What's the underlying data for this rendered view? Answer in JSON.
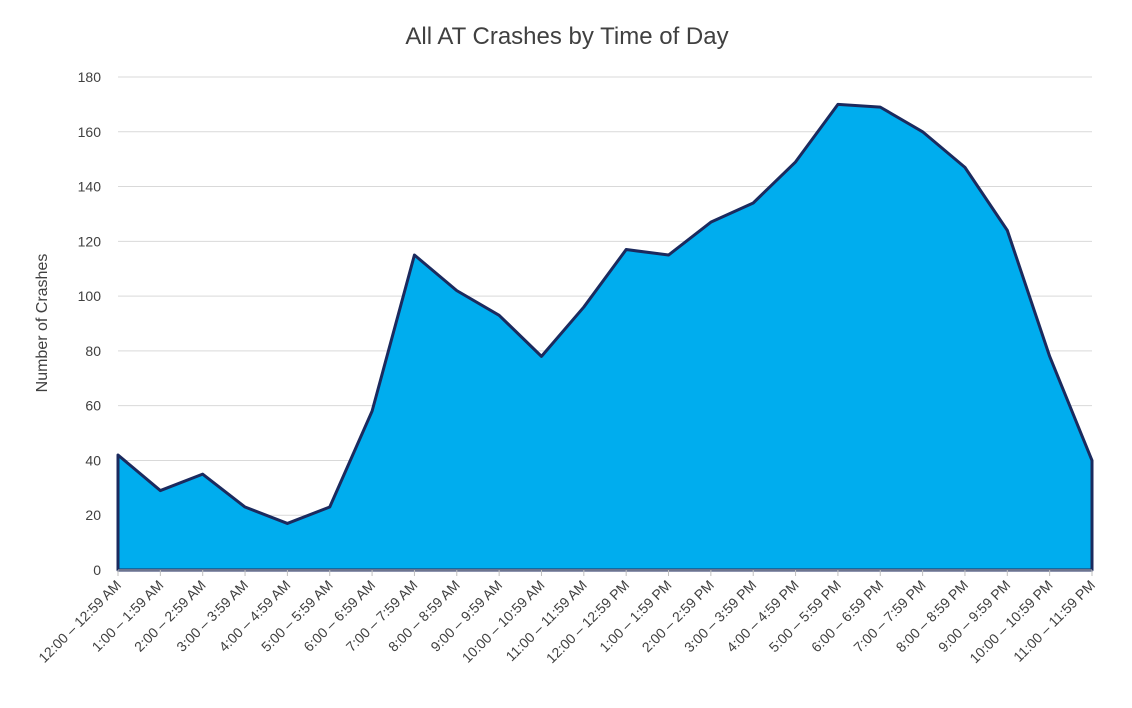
{
  "chart_data": {
    "type": "area",
    "title": "All AT Crashes by Time of Day",
    "xlabel": "",
    "ylabel": "Number of Crashes",
    "ylim": [
      0,
      180
    ],
    "yticks": [
      0,
      20,
      40,
      60,
      80,
      100,
      120,
      140,
      160,
      180
    ],
    "grid": true,
    "legend": "none",
    "colors": {
      "fill": "#00adee",
      "stroke": "#1b2a5e"
    },
    "categories": [
      "12:00 – 12:59 AM",
      "1:00 – 1:59 AM",
      "2:00 – 2:59 AM",
      "3:00 – 3:59 AM",
      "4:00 – 4:59 AM",
      "5:00 – 5:59 AM",
      "6:00 – 6:59 AM",
      "7:00 – 7:59 AM",
      "8:00 – 8:59 AM",
      "9:00 – 9:59 AM",
      "10:00 – 10:59 AM",
      "11:00 – 11:59 AM",
      "12:00 – 12:59 PM",
      "1:00 – 1:59 PM",
      "2:00 – 2:59 PM",
      "3:00 – 3:59 PM",
      "4:00 – 4:59 PM",
      "5:00 – 5:59 PM",
      "6:00 – 6:59 PM",
      "7:00 – 7:59 PM",
      "8:00 – 8:59 PM",
      "9:00 – 9:59 PM",
      "10:00 – 10:59 PM",
      "11:00 – 11:59 PM"
    ],
    "values": [
      42,
      29,
      35,
      23,
      17,
      23,
      58,
      115,
      102,
      93,
      78,
      96,
      117,
      115,
      127,
      134,
      149,
      170,
      169,
      160,
      147,
      124,
      78,
      40
    ]
  }
}
